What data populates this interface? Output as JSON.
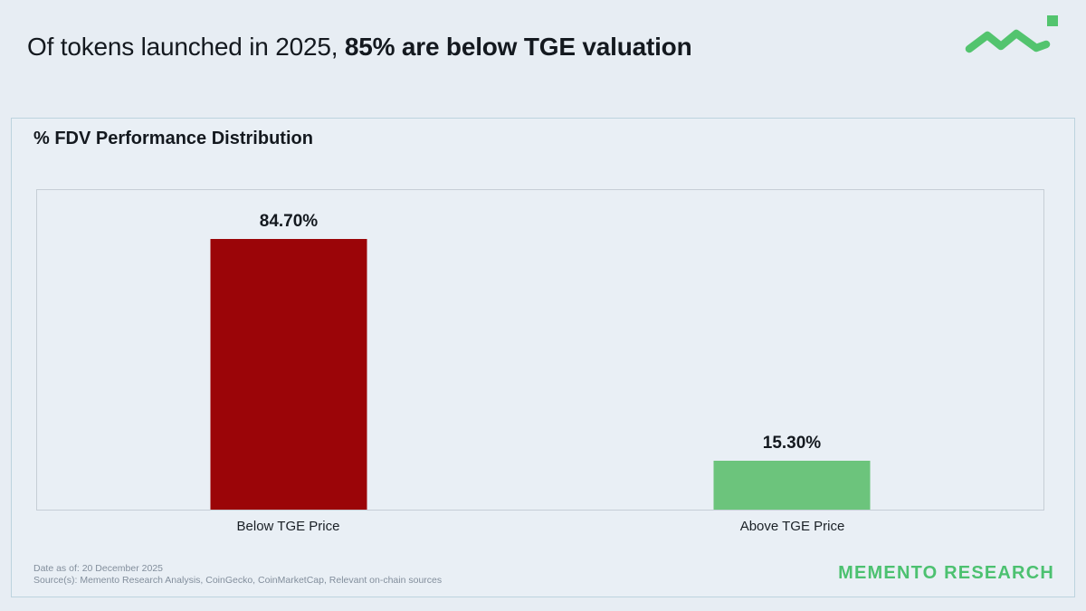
{
  "page": {
    "header_title_regular": "Of tokens launched in 2025, ",
    "header_title_bold": "85% are below TGE valuation"
  },
  "card": {
    "title": "% FDV Performance Distribution"
  },
  "chart_data": {
    "type": "bar",
    "title": "% FDV Performance Distribution",
    "categories": [
      "Below TGE Price",
      "Above TGE Price"
    ],
    "values": [
      84.7,
      15.3
    ],
    "value_labels": [
      "84.70%",
      "15.30%"
    ],
    "bar_colors": [
      "#9b0508",
      "#6cc47c"
    ],
    "xlabel": "",
    "ylabel": "",
    "ylim": [
      0,
      100
    ],
    "grid": false,
    "legend": "none"
  },
  "footer": {
    "date_line": "Date as of: 20 December 2025",
    "source_line": "Source(s): Memento Research Analysis, CoinGecko, CoinMarketCap, Relevant on-chain sources",
    "brand": "MEMENTO RESEARCH"
  },
  "colors": {
    "background": "#e7edf3",
    "card_border": "#bdd3de",
    "plot_border": "#c6ced6",
    "bar_red": "#9b0508",
    "bar_green": "#6cc47c",
    "logo_green": "#53c46e",
    "brand_green": "#4cc170",
    "text_dark": "#14191f",
    "text_muted": "#828e9c"
  }
}
